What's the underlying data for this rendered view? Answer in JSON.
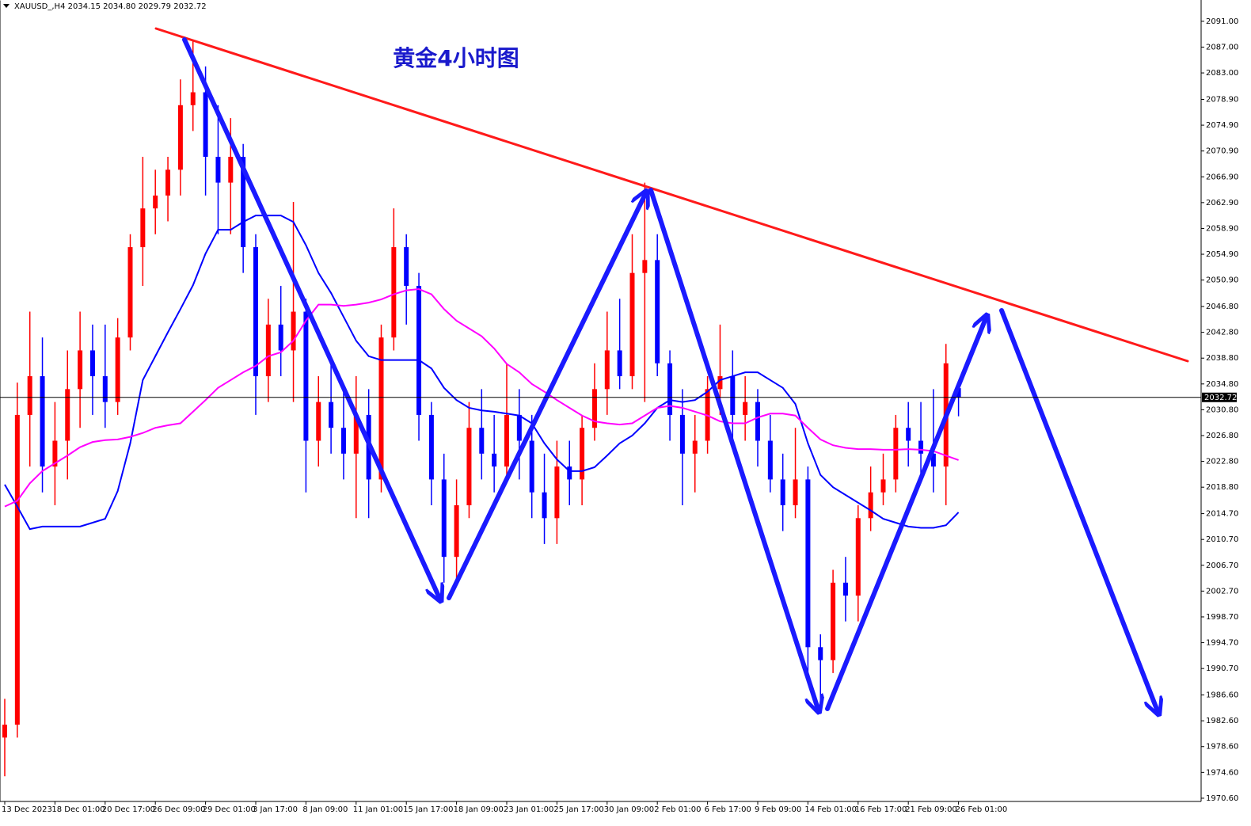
{
  "chart_data": {
    "type": "candlestick",
    "header": "XAUUSD_,H4  2034.15 2034.80 2029.79 2032.72",
    "annotation": "黄金4小时图",
    "up_color": "#ff0000",
    "down_color": "#0000ff",
    "ylim": [
      1970.1,
      2094.3
    ],
    "yticks": [
      {
        "value": 2091,
        "label": "2091.00"
      },
      {
        "value": 2087,
        "label": "2087.00"
      },
      {
        "value": 2083,
        "label": "2083.00"
      },
      {
        "value": 2078.9,
        "label": "2078.90"
      },
      {
        "value": 2074.9,
        "label": "2074.90"
      },
      {
        "value": 2070.9,
        "label": "2070.90"
      },
      {
        "value": 2066.9,
        "label": "2066.90"
      },
      {
        "value": 2062.9,
        "label": "2062.90"
      },
      {
        "value": 2058.9,
        "label": "2058.90"
      },
      {
        "value": 2054.9,
        "label": "2054.90"
      },
      {
        "value": 2050.9,
        "label": "2050.90"
      },
      {
        "value": 2046.8,
        "label": "2046.80"
      },
      {
        "value": 2042.8,
        "label": "2042.80"
      },
      {
        "value": 2038.8,
        "label": "2038.80"
      },
      {
        "value": 2034.8,
        "label": "2034.80"
      },
      {
        "value": 2030.8,
        "label": "2030.80"
      },
      {
        "value": 2026.8,
        "label": "2026.80"
      },
      {
        "value": 2022.8,
        "label": "2022.80"
      },
      {
        "value": 2018.8,
        "label": "2018.80"
      },
      {
        "value": 2014.7,
        "label": "2014.70"
      },
      {
        "value": 2010.7,
        "label": "2010.70"
      },
      {
        "value": 2006.7,
        "label": "2006.70"
      },
      {
        "value": 2002.7,
        "label": "2002.70"
      },
      {
        "value": 1998.7,
        "label": "1998.70"
      },
      {
        "value": 1994.7,
        "label": "1994.70"
      },
      {
        "value": 1990.7,
        "label": "1990.70"
      },
      {
        "value": 1986.6,
        "label": "1986.60"
      },
      {
        "value": 1982.6,
        "label": "1982.60"
      },
      {
        "value": 1978.6,
        "label": "1978.60"
      },
      {
        "value": 1974.6,
        "label": "1974.60"
      },
      {
        "value": 1970.6,
        "label": "1970.60"
      }
    ],
    "last_price": {
      "value": 2032.72,
      "label": "2032.72"
    },
    "categories": [
      "13 Dec 2023",
      null,
      null,
      null,
      "18 Dec 01:00",
      null,
      null,
      null,
      "20 Dec 17:00",
      null,
      null,
      null,
      "26 Dec 09:00",
      null,
      null,
      null,
      "29 Dec 01:00",
      null,
      null,
      null,
      "3 Jan 17:00",
      null,
      null,
      null,
      "8 Jan 09:00",
      null,
      null,
      null,
      "11 Jan 01:00",
      null,
      null,
      null,
      "15 Jan 17:00",
      null,
      null,
      null,
      "18 Jan 09:00",
      null,
      null,
      null,
      "23 Jan 01:00",
      null,
      null,
      null,
      "25 Jan 17:00",
      null,
      null,
      null,
      "30 Jan 09:00",
      null,
      null,
      null,
      "2 Feb 01:00",
      null,
      null,
      null,
      "6 Feb 17:00",
      null,
      null,
      null,
      "9 Feb 09:00",
      null,
      null,
      null,
      "14 Feb 01:00",
      null,
      null,
      null,
      "16 Feb 17:00",
      null,
      null,
      null,
      "21 Feb 09:00",
      null,
      null,
      null,
      "26 Feb 01:00"
    ],
    "open": [
      1980,
      1982,
      2030,
      2036,
      2022,
      2026,
      2034,
      2040,
      2036,
      2032,
      2042,
      2056,
      2062,
      2064,
      2068,
      2078,
      2080,
      2070,
      2066,
      2070,
      2056,
      2036,
      2044,
      2040,
      2046,
      2026,
      2032,
      2028,
      2024,
      2030,
      2020,
      2042,
      2056,
      2050,
      2030,
      2020,
      2008,
      2016,
      2028,
      2024,
      2022,
      2030,
      2026,
      2018,
      2014,
      2022,
      2020,
      2028,
      2034,
      2040,
      2036,
      2052,
      2054,
      2038,
      2030,
      2024,
      2026,
      2034,
      2036,
      2030,
      2032,
      2026,
      2020,
      2016,
      2020,
      1994,
      1992,
      2004,
      2002,
      2014,
      2018,
      2020,
      2028,
      2026,
      2024,
      2022,
      2034.15
    ],
    "high": [
      1986,
      2035,
      2046,
      2042,
      2032,
      2040,
      2046,
      2044,
      2044,
      2045,
      2058,
      2070,
      2068,
      2070,
      2082,
      2088,
      2084,
      2078,
      2076,
      2072,
      2058,
      2048,
      2050,
      2063,
      2048,
      2036,
      2038,
      2034,
      2036,
      2034,
      2044,
      2062,
      2058,
      2052,
      2032,
      2024,
      2020,
      2032,
      2034,
      2030,
      2038,
      2034,
      2030,
      2024,
      2026,
      2026,
      2030,
      2038,
      2046,
      2048,
      2058,
      2066,
      2058,
      2040,
      2034,
      2030,
      2036,
      2044,
      2040,
      2036,
      2034,
      2030,
      2024,
      2028,
      2022,
      1996,
      2006,
      2008,
      2016,
      2022,
      2024,
      2030,
      2032,
      2032,
      2034,
      2041,
      2034.8
    ],
    "low": [
      1974,
      1980,
      2022,
      2018,
      2016,
      2020,
      2028,
      2030,
      2028,
      2030,
      2040,
      2050,
      2058,
      2060,
      2064,
      2074,
      2064,
      2058,
      2058,
      2052,
      2030,
      2032,
      2036,
      2032,
      2018,
      2022,
      2024,
      2020,
      2014,
      2014,
      2018,
      2040,
      2044,
      2026,
      2016,
      2004,
      2004,
      2014,
      2020,
      2018,
      2020,
      2020,
      2014,
      2010,
      2010,
      2016,
      2016,
      2026,
      2030,
      2034,
      2034,
      2032,
      2036,
      2026,
      2016,
      2018,
      2024,
      2030,
      2026,
      2026,
      2022,
      2018,
      2012,
      2014,
      1990,
      1984,
      1990,
      1998,
      1998,
      2012,
      2016,
      2018,
      2022,
      2020,
      2018,
      2016,
      2029.79
    ],
    "close": [
      1982,
      2030,
      2036,
      2022,
      2026,
      2034,
      2040,
      2036,
      2032,
      2042,
      2056,
      2062,
      2064,
      2068,
      2078,
      2080,
      2070,
      2066,
      2070,
      2056,
      2036,
      2044,
      2040,
      2046,
      2026,
      2032,
      2028,
      2024,
      2030,
      2020,
      2042,
      2056,
      2050,
      2030,
      2020,
      2008,
      2016,
      2028,
      2024,
      2022,
      2030,
      2026,
      2018,
      2014,
      2022,
      2020,
      2028,
      2034,
      2040,
      2036,
      2052,
      2054,
      2038,
      2030,
      2024,
      2026,
      2034,
      2036,
      2030,
      2032,
      2026,
      2020,
      2016,
      2020,
      1994,
      1992,
      2004,
      2002,
      2014,
      2018,
      2020,
      2028,
      2026,
      2024,
      2022,
      2038,
      2032.72
    ],
    "lines": [
      {
        "color": "#0000ff",
        "values": [
          2019.2,
          2015.8,
          2012.3,
          2012.7,
          2012.7,
          2012.7,
          2012.7,
          2013.3,
          2013.9,
          2018.2,
          2025.6,
          2035.4,
          2039.1,
          2042.8,
          2046.4,
          2050.1,
          2055.0,
          2058.7,
          2058.7,
          2059.9,
          2060.9,
          2060.9,
          2060.9,
          2059.9,
          2056.3,
          2052.0,
          2048.9,
          2045.2,
          2041.5,
          2039.1,
          2038.5,
          2038.5,
          2038.5,
          2038.5,
          2037.2,
          2034.2,
          2032.3,
          2031.1,
          2030.7,
          2030.5,
          2030.2,
          2029.9,
          2028.7,
          2025.6,
          2023.1,
          2021.3,
          2021.3,
          2021.9,
          2023.7,
          2025.6,
          2026.8,
          2028.7,
          2031.1,
          2032.3,
          2032.0,
          2032.3,
          2033.6,
          2035.4,
          2036.0,
          2036.6,
          2036.6,
          2035.4,
          2034.2,
          2031.7,
          2025.6,
          2020.7,
          2018.8,
          2017.6,
          2016.4,
          2015.2,
          2013.9,
          2013.3,
          2012.7,
          2012.5,
          2012.5,
          2012.9,
          2014.9
        ]
      },
      {
        "color": "#ff00ff",
        "values": [
          2015.8,
          2016.7,
          2019.4,
          2021.3,
          2022.5,
          2023.7,
          2025.0,
          2025.8,
          2026.1,
          2026.2,
          2026.6,
          2027.2,
          2028.0,
          2028.4,
          2028.7,
          2030.5,
          2032.3,
          2034.2,
          2035.4,
          2036.6,
          2037.6,
          2039.1,
          2039.7,
          2041.5,
          2044.6,
          2047.1,
          2047.1,
          2046.9,
          2047.1,
          2047.4,
          2047.9,
          2048.7,
          2049.3,
          2049.5,
          2048.7,
          2046.4,
          2044.6,
          2043.4,
          2042.2,
          2040.3,
          2037.9,
          2036.6,
          2034.8,
          2033.6,
          2032.3,
          2031.1,
          2029.9,
          2029.0,
          2028.7,
          2028.5,
          2028.7,
          2029.9,
          2031.1,
          2031.4,
          2031.1,
          2030.5,
          2029.9,
          2029.0,
          2028.7,
          2028.7,
          2029.6,
          2030.2,
          2030.2,
          2029.9,
          2028.0,
          2026.2,
          2025.3,
          2024.9,
          2024.7,
          2024.7,
          2024.6,
          2024.6,
          2024.7,
          2024.6,
          2024.4,
          2023.7,
          2023.0
        ]
      }
    ]
  }
}
